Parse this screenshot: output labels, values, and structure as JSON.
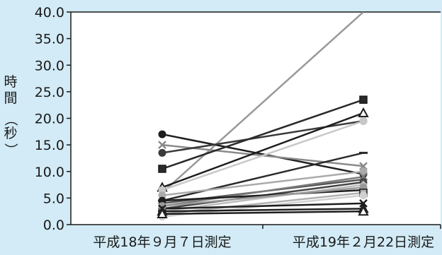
{
  "chart_data": {
    "type": "line",
    "title": "",
    "xlabel": "",
    "ylabel": "時間（秒）",
    "ylabel_chars": [
      "時",
      "間",
      "（",
      "秒",
      "）"
    ],
    "categories": [
      "平成18年９月７日測定",
      "平成19年２月22日測定"
    ],
    "ylim": [
      0,
      40
    ],
    "yticks": [
      0,
      5,
      10,
      15,
      20,
      25,
      30,
      35,
      40
    ],
    "ytick_labels": [
      "0.0",
      "5.0",
      "10.0",
      "15.0",
      "20.0",
      "25.0",
      "30.0",
      "35.0",
      "40.0"
    ],
    "grid": false,
    "legend": "none",
    "series": [
      {
        "values": [
          6.0,
          40.0
        ],
        "color": "#999999",
        "marker": "none"
      },
      {
        "values": [
          17.0,
          9.5
        ],
        "color": "#1e1e1e",
        "marker": "circle"
      },
      {
        "values": [
          15.0,
          11.0
        ],
        "color": "#8a8a8a",
        "marker": "x"
      },
      {
        "values": [
          13.5,
          19.5
        ],
        "color": "#3a3a3a",
        "marker": "circle"
      },
      {
        "values": [
          10.5,
          23.5
        ],
        "color": "#2a2a2a",
        "marker": "square"
      },
      {
        "values": [
          7.0,
          21.0
        ],
        "color": "#1e1e1e",
        "marker": "triangle"
      },
      {
        "values": [
          6.5,
          19.5
        ],
        "color": "#c8c8c8",
        "marker": "circle"
      },
      {
        "values": [
          4.5,
          13.5
        ],
        "color": "#2a2a2a",
        "marker": "dash"
      },
      {
        "values": [
          5.5,
          10.0
        ],
        "color": "#aaaaaa",
        "marker": "circle"
      },
      {
        "values": [
          4.0,
          8.5
        ],
        "color": "#555555",
        "marker": "diamond"
      },
      {
        "values": [
          3.5,
          9.0
        ],
        "color": "#7a7a7a",
        "marker": "x"
      },
      {
        "values": [
          3.0,
          8.0
        ],
        "color": "#444444",
        "marker": "circle"
      },
      {
        "values": [
          2.5,
          7.5
        ],
        "color": "#bbbbbb",
        "marker": "diamond"
      },
      {
        "values": [
          4.5,
          6.5
        ],
        "color": "#1e1e1e",
        "marker": "circle"
      },
      {
        "values": [
          3.5,
          7.0
        ],
        "color": "#999999",
        "marker": "circle"
      },
      {
        "values": [
          2.0,
          6.0
        ],
        "color": "#b0b0b0",
        "marker": "square"
      },
      {
        "values": [
          1.5,
          5.5
        ],
        "color": "#d0d0d0",
        "marker": "circle"
      },
      {
        "values": [
          3.0,
          4.0
        ],
        "color": "#1e1e1e",
        "marker": "x"
      },
      {
        "values": [
          2.5,
          3.0
        ],
        "color": "#1e1e1e",
        "marker": "triangle"
      },
      {
        "values": [
          2.0,
          2.5
        ],
        "color": "#1e1e1e",
        "marker": "triangle"
      }
    ]
  }
}
